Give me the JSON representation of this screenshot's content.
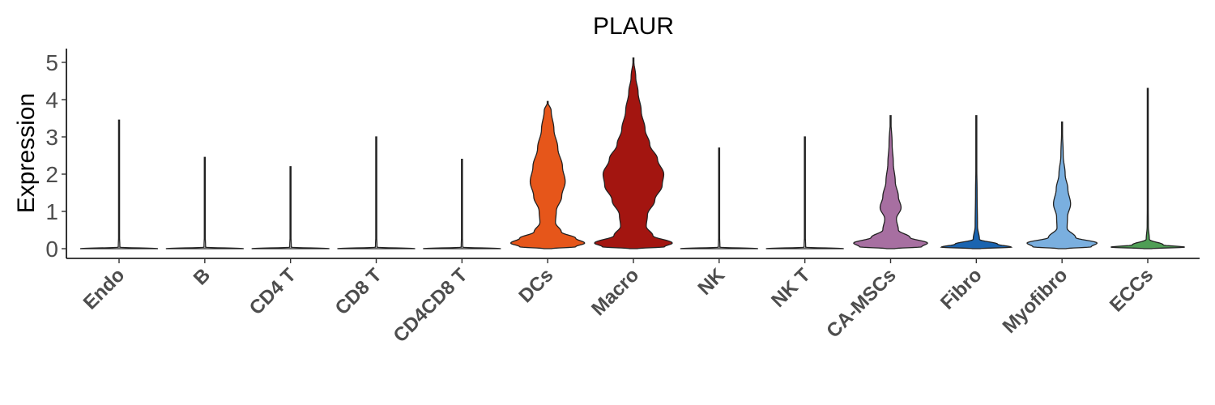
{
  "chart_data": {
    "type": "violin",
    "title": "PLAUR",
    "xlabel": "",
    "ylabel": "Expression",
    "ylim": [
      -0.2,
      5.35
    ],
    "yticks": [
      0,
      1,
      2,
      3,
      4,
      5
    ],
    "categories": [
      "Endo",
      "B",
      "CD4 T",
      "CD8 T",
      "CD4CD8 T",
      "DCs",
      "Macro",
      "NK",
      "NK T",
      "CA-MSCs",
      "Fibro",
      "Myofibro",
      "ECCs"
    ],
    "colors": [
      "#e8e8e8",
      "#e8e8e8",
      "#e8e8e8",
      "#e8e8e8",
      "#e8e8e8",
      "#e6561a",
      "#a31510",
      "#e8e8e8",
      "#e8e8e8",
      "#a76fa1",
      "#1a64b0",
      "#7aafdf",
      "#4f9e55"
    ],
    "max_values": [
      3.45,
      2.45,
      2.2,
      3.0,
      2.4,
      3.95,
      5.12,
      2.7,
      3.0,
      3.57,
      3.57,
      3.4,
      4.3
    ],
    "density_profiles": [
      [
        [
          0,
          1
        ],
        [
          0.04,
          0.02
        ],
        [
          0.5,
          0.004
        ],
        [
          3.45,
          0
        ]
      ],
      [
        [
          0,
          1
        ],
        [
          0.04,
          0.02
        ],
        [
          0.5,
          0.004
        ],
        [
          2.45,
          0
        ]
      ],
      [
        [
          0,
          1
        ],
        [
          0.04,
          0.02
        ],
        [
          0.5,
          0.004
        ],
        [
          2.2,
          0
        ]
      ],
      [
        [
          0,
          1
        ],
        [
          0.04,
          0.02
        ],
        [
          0.5,
          0.004
        ],
        [
          3.0,
          0
        ]
      ],
      [
        [
          0,
          1
        ],
        [
          0.04,
          0.02
        ],
        [
          0.5,
          0.004
        ],
        [
          2.4,
          0
        ]
      ],
      [
        [
          0,
          0.1
        ],
        [
          0.05,
          0.72
        ],
        [
          0.15,
          0.95
        ],
        [
          0.28,
          0.72
        ],
        [
          0.45,
          0.35
        ],
        [
          0.7,
          0.2
        ],
        [
          1.0,
          0.22
        ],
        [
          1.4,
          0.36
        ],
        [
          1.8,
          0.45
        ],
        [
          2.2,
          0.38
        ],
        [
          2.7,
          0.26
        ],
        [
          3.2,
          0.16
        ],
        [
          3.7,
          0.09
        ],
        [
          3.95,
          0
        ]
      ],
      [
        [
          0,
          0.1
        ],
        [
          0.05,
          0.8
        ],
        [
          0.15,
          1.0
        ],
        [
          0.35,
          0.5
        ],
        [
          0.6,
          0.33
        ],
        [
          0.9,
          0.36
        ],
        [
          1.3,
          0.55
        ],
        [
          1.7,
          0.74
        ],
        [
          2.0,
          0.78
        ],
        [
          2.4,
          0.62
        ],
        [
          2.8,
          0.42
        ],
        [
          3.2,
          0.3
        ],
        [
          3.7,
          0.2
        ],
        [
          4.2,
          0.12
        ],
        [
          4.6,
          0.06
        ],
        [
          5.12,
          0
        ]
      ],
      [
        [
          0,
          1
        ],
        [
          0.04,
          0.02
        ],
        [
          0.5,
          0.004
        ],
        [
          2.7,
          0
        ]
      ],
      [
        [
          0,
          1
        ],
        [
          0.04,
          0.02
        ],
        [
          0.5,
          0.004
        ],
        [
          3.0,
          0
        ]
      ],
      [
        [
          0,
          0.1
        ],
        [
          0.05,
          0.8
        ],
        [
          0.15,
          0.95
        ],
        [
          0.3,
          0.5
        ],
        [
          0.5,
          0.2
        ],
        [
          0.8,
          0.15
        ],
        [
          1.1,
          0.27
        ],
        [
          1.4,
          0.2
        ],
        [
          1.8,
          0.12
        ],
        [
          2.3,
          0.07
        ],
        [
          2.8,
          0.04
        ],
        [
          3.57,
          0
        ]
      ],
      [
        [
          0,
          0.1
        ],
        [
          0.04,
          0.9
        ],
        [
          0.12,
          0.55
        ],
        [
          0.25,
          0.08
        ],
        [
          0.6,
          0.03
        ],
        [
          1.5,
          0.02
        ],
        [
          2.3,
          0.01
        ],
        [
          3.57,
          0
        ]
      ],
      [
        [
          0,
          0.1
        ],
        [
          0.05,
          0.75
        ],
        [
          0.15,
          0.9
        ],
        [
          0.3,
          0.35
        ],
        [
          0.55,
          0.13
        ],
        [
          0.85,
          0.14
        ],
        [
          1.2,
          0.22
        ],
        [
          1.6,
          0.15
        ],
        [
          2.0,
          0.08
        ],
        [
          2.5,
          0.03
        ],
        [
          3.4,
          0
        ]
      ],
      [
        [
          0,
          0.1
        ],
        [
          0.04,
          0.95
        ],
        [
          0.1,
          0.4
        ],
        [
          0.25,
          0.04
        ],
        [
          0.6,
          0.015
        ],
        [
          1.5,
          0.008
        ],
        [
          4.3,
          0
        ]
      ]
    ]
  }
}
